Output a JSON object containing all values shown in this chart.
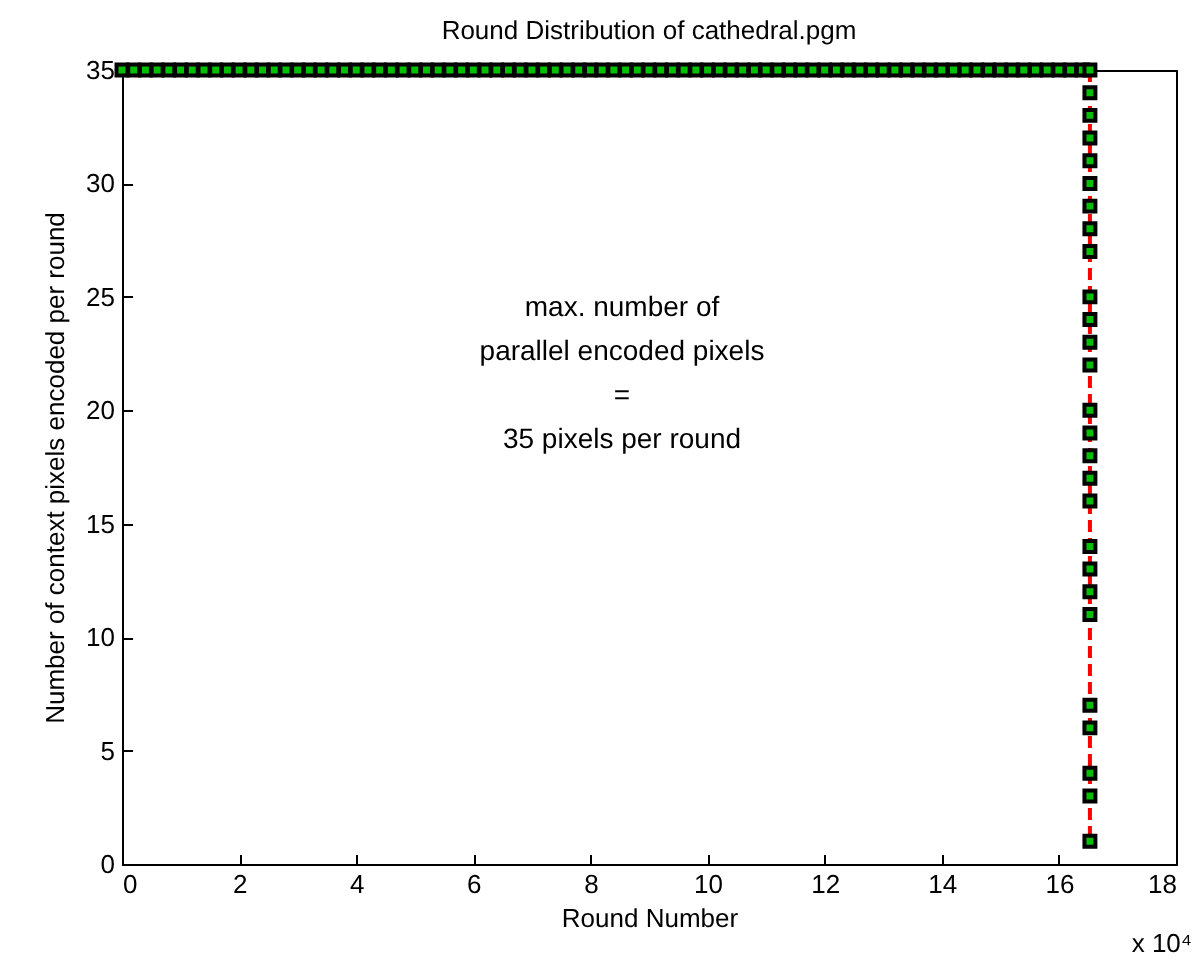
{
  "chart_data": {
    "type": "line",
    "title": "Round Distribution of cathedral.pgm",
    "xlabel": "Round Number",
    "ylabel": "Number of context pixels encoded per round",
    "annotations": [
      "max. number of\nparallel encoded pixels\n=\n35 pixels per round",
      "x 10⁴"
    ],
    "series": [
      {
        "type": "scatter",
        "color": "#000000",
        "x": [
          0,
          0.2,
          0.4,
          0.6,
          0.8,
          1,
          1.2,
          1.4,
          1.6,
          1.8,
          2,
          2.2,
          2.4,
          2.6,
          2.8,
          3,
          3.2,
          3.4,
          3.6,
          3.8,
          4,
          4.2,
          4.4,
          4.6,
          4.8,
          5,
          5.2,
          5.4,
          5.6,
          5.8,
          6,
          6.2,
          6.4,
          6.6,
          6.8,
          7,
          7.2,
          7.4,
          7.6,
          7.8,
          8,
          8.2,
          8.4,
          8.6,
          8.8,
          9,
          9.2,
          9.4,
          9.6,
          9.8,
          10,
          10.2,
          10.4,
          10.6,
          10.8,
          11,
          11.2,
          11.4,
          11.6,
          11.8,
          12,
          12.2,
          12.4,
          12.6,
          12.8,
          13,
          13.2,
          13.4,
          13.6,
          13.8,
          14,
          14.2,
          14.4,
          14.6,
          14.8,
          15,
          15.2,
          15.4,
          15.6,
          15.8,
          16,
          16.2,
          16.4
        ],
        "values": [
          35,
          35,
          35,
          35,
          35,
          35,
          35,
          35,
          35,
          35,
          35,
          35,
          35,
          35,
          35,
          35,
          35,
          35,
          35,
          35,
          35,
          35,
          35,
          35,
          35,
          35,
          35,
          35,
          35,
          35,
          35,
          35,
          35,
          35,
          35,
          35,
          35,
          35,
          35,
          35,
          35,
          35,
          35,
          35,
          35,
          35,
          35,
          35,
          35,
          35,
          35,
          35,
          35,
          35,
          35,
          35,
          35,
          35,
          35,
          35,
          35,
          35,
          35,
          35,
          35,
          35,
          35,
          35,
          35,
          35,
          35,
          35,
          35,
          35,
          35,
          35,
          35,
          35,
          35,
          35,
          35,
          35,
          35
        ]
      },
      {
        "color": "#ff0000",
        "x": [
          16.53,
          16.53,
          16.53,
          16.53,
          16.53,
          16.53,
          16.53,
          16.53,
          16.53,
          16.53,
          16.53,
          16.53,
          16.53,
          16.53,
          16.53,
          16.53,
          16.53,
          16.53,
          16.53,
          16.53,
          16.53,
          16.53,
          16.53,
          16.53,
          16.53,
          16.53,
          16.53
        ],
        "values": [
          35,
          34,
          33,
          32,
          31,
          30,
          29,
          28,
          27,
          25,
          24,
          23,
          22,
          20,
          19,
          18,
          17,
          16,
          14,
          13,
          12,
          11,
          7,
          6,
          4,
          3,
          1
        ]
      }
    ],
    "xlim": [
      0,
      18
    ],
    "xticks": [
      0,
      2,
      4,
      6,
      8,
      10,
      12,
      14,
      16,
      18
    ],
    "ylim": [
      0,
      35
    ],
    "yticks": [
      0,
      5,
      10,
      15,
      20,
      25,
      30,
      35
    ],
    "grid": false,
    "marker": "square",
    "line_style": "dashed"
  }
}
